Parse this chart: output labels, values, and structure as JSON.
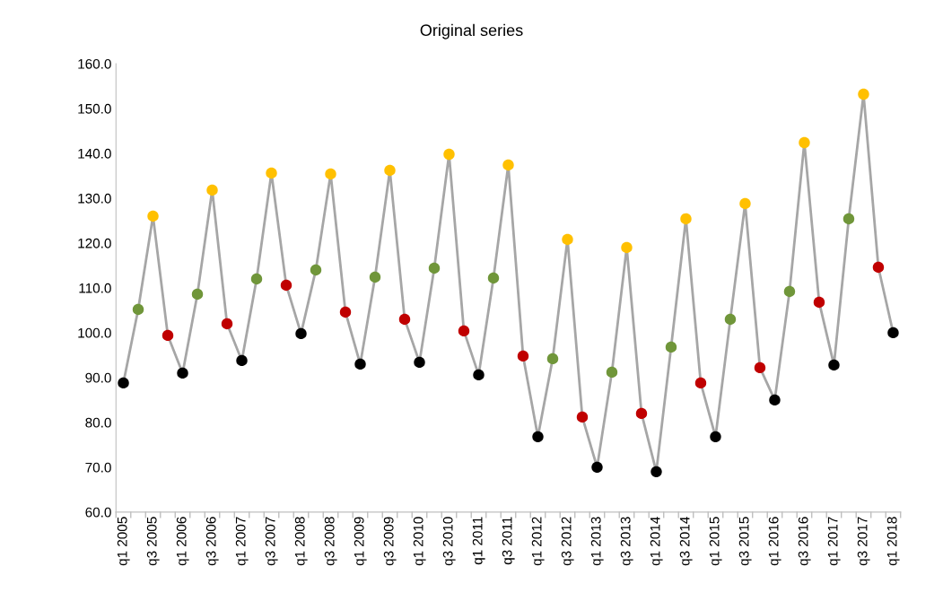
{
  "chart_data": {
    "type": "line",
    "title": "Original series",
    "categories": [
      "q1 2005",
      null,
      "q3 2005",
      null,
      "q1 2006",
      null,
      "q3 2006",
      null,
      "q1 2007",
      null,
      "q3 2007",
      null,
      "q1 2008",
      null,
      "q3 2008",
      null,
      "q1 2009",
      null,
      "q3 2009",
      null,
      "q1 2010",
      null,
      "q3 2010",
      null,
      "q1 2011",
      null,
      "q3 2011",
      null,
      "q1 2012",
      null,
      "q3 2012",
      null,
      "q1 2013",
      null,
      "q3 2013",
      null,
      "q1 2014",
      null,
      "q3 2014",
      null,
      "q1 2015",
      null,
      "q3 2015",
      null,
      "q1 2016",
      null,
      "q3 2016",
      null,
      "q1 2017",
      null,
      "q3 2017",
      null,
      "q1 2018"
    ],
    "series": [
      {
        "color": "#a6a6a6",
        "values": [
          88.8,
          105.2,
          126.0,
          99.4,
          91.0,
          108.6,
          131.8,
          102.0,
          93.8,
          112.0,
          135.6,
          110.6,
          99.8,
          114.0,
          135.4,
          104.6,
          93.0,
          112.4,
          136.2,
          103.0,
          93.4,
          114.4,
          139.8,
          100.4,
          90.6,
          112.2,
          137.4,
          94.8,
          76.8,
          94.2,
          120.8,
          81.2,
          70.0,
          91.2,
          119.0,
          82.0,
          69.0,
          96.8,
          125.4,
          88.8,
          76.8,
          103.0,
          128.8,
          92.2,
          85.0,
          109.2,
          142.4,
          106.8,
          92.8,
          125.4,
          153.2,
          114.6,
          100.0
        ],
        "colors": [
          "#000000",
          "#70963a",
          "#ffc000",
          "#c00000",
          "#000000",
          "#70963a",
          "#ffc000",
          "#c00000",
          "#000000",
          "#70963a",
          "#ffc000",
          "#c00000",
          "#000000",
          "#70963a",
          "#ffc000",
          "#c00000",
          "#000000",
          "#70963a",
          "#ffc000",
          "#c00000",
          "#000000",
          "#70963a",
          "#ffc000",
          "#c00000",
          "#000000",
          "#70963a",
          "#ffc000",
          "#c00000",
          "#000000",
          "#70963a",
          "#ffc000",
          "#c00000",
          "#000000",
          "#70963a",
          "#ffc000",
          "#c00000",
          "#000000",
          "#70963a",
          "#ffc000",
          "#c00000",
          "#000000",
          "#70963a",
          "#ffc000",
          "#c00000",
          "#000000",
          "#70963a",
          "#ffc000",
          "#c00000",
          "#000000",
          "#70963a",
          "#ffc000",
          "#c00000",
          "#000000"
        ]
      }
    ],
    "ylim": [
      60,
      160
    ],
    "yticks": [
      {
        "value": 60,
        "label": "60.0"
      },
      {
        "value": 70,
        "label": "70.0"
      },
      {
        "value": 80,
        "label": "80.0"
      },
      {
        "value": 90,
        "label": "90.0"
      },
      {
        "value": 100,
        "label": "100.0"
      },
      {
        "value": 110,
        "label": "110.0"
      },
      {
        "value": 120,
        "label": "120.0"
      },
      {
        "value": 130,
        "label": "130.0"
      },
      {
        "value": 140,
        "label": "140.0"
      },
      {
        "value": 150,
        "label": "150.0"
      },
      {
        "value": 160,
        "label": "160.0"
      }
    ],
    "grid": false,
    "legend": false,
    "marker": "circle",
    "line_style": "solid"
  }
}
